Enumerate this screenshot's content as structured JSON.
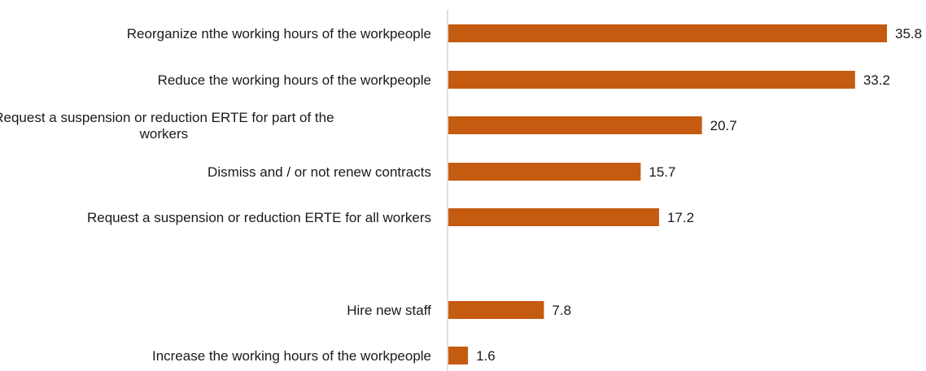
{
  "chart_data": {
    "type": "bar",
    "orientation": "horizontal",
    "title": "",
    "xlabel": "",
    "ylabel": "",
    "xlim": [
      0,
      36
    ],
    "grid": false,
    "legend": "none",
    "bar_color": "#c55a11",
    "categories": [
      [
        "Reorganize nthe working hours of the workpeople"
      ],
      [
        "Reduce the working hours of the workpeople"
      ],
      [
        "Request a suspension or reduction ERTE for part of the",
        "workers"
      ],
      [
        "Dismiss and / or not renew contracts"
      ],
      [
        "Request a suspension or reduction ERTE for all workers"
      ],
      [
        "Hire new staff"
      ],
      [
        "Increase the working hours of the workpeople"
      ]
    ],
    "values": [
      35.8,
      33.2,
      20.7,
      15.7,
      17.2,
      7.8,
      1.6
    ],
    "value_labels": [
      "35.8",
      "33.2",
      "20.7",
      "15.7",
      "17.2",
      "7.8",
      "1.6"
    ]
  }
}
